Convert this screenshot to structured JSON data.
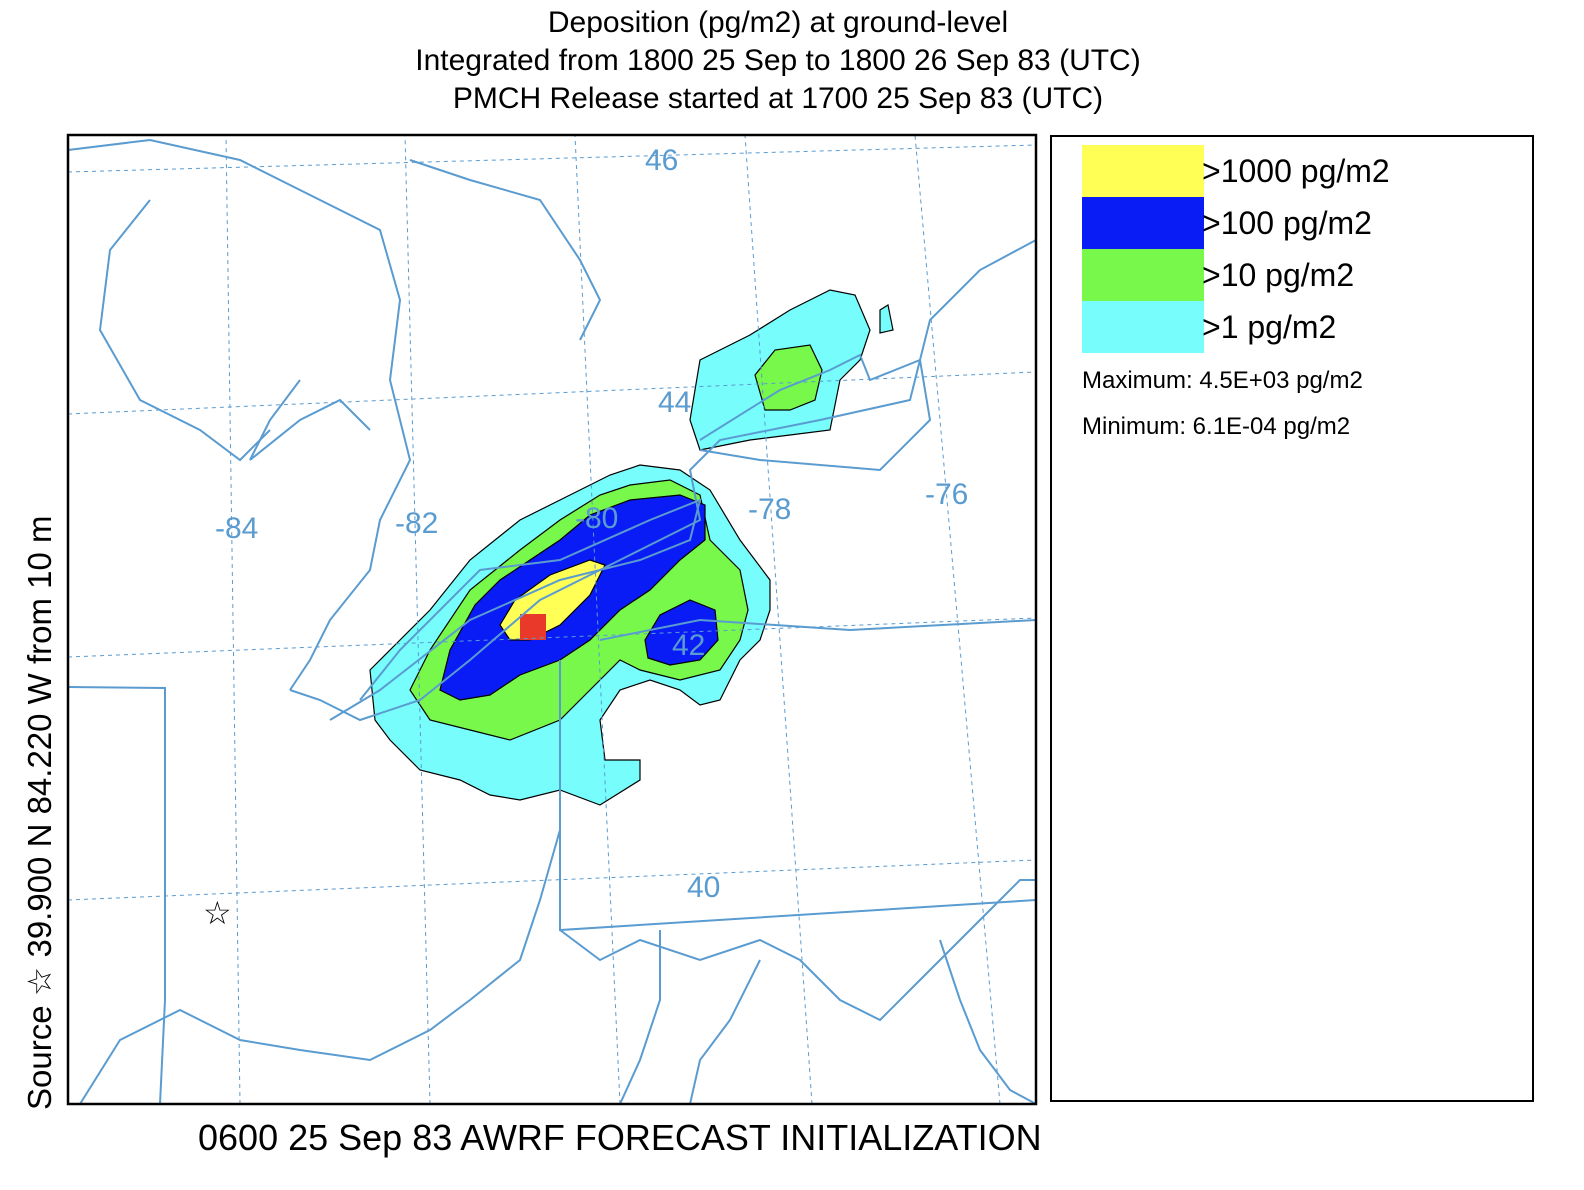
{
  "title": {
    "line1": "Deposition  (pg/m2) at ground-level",
    "line2": "Integrated from 1800 25 Sep to 1800 26 Sep 83 (UTC)",
    "line3": "PMCH Release started at 1700 25 Sep 83 (UTC)"
  },
  "side_label": "Source ☆ 39.900  N  84.220  W   from   10 m",
  "bottom_label": "0600 25 Sep 83 AWRF FORECAST INITIALIZATION",
  "map": {
    "lat_labels": [
      "46",
      "44",
      "42",
      "40"
    ],
    "lon_labels": [
      "-84",
      "-82",
      "-80",
      "-78",
      "-76"
    ],
    "source_marker": "star-icon",
    "max_cell_color": "#e8392a",
    "line_color": "#5a9bd0"
  },
  "legend": {
    "items": [
      {
        "label": ">1000 pg/m2",
        "color": "#ffff55"
      },
      {
        "label": ">100 pg/m2",
        "color": "#0a1cf5"
      },
      {
        "label": ">10 pg/m2",
        "color": "#77f84a"
      },
      {
        "label": ">1 pg/m2",
        "color": "#78fdfd"
      }
    ],
    "maximum": "Maximum: 4.5E+03 pg/m2",
    "minimum": "Minimum: 6.1E-04 pg/m2"
  }
}
